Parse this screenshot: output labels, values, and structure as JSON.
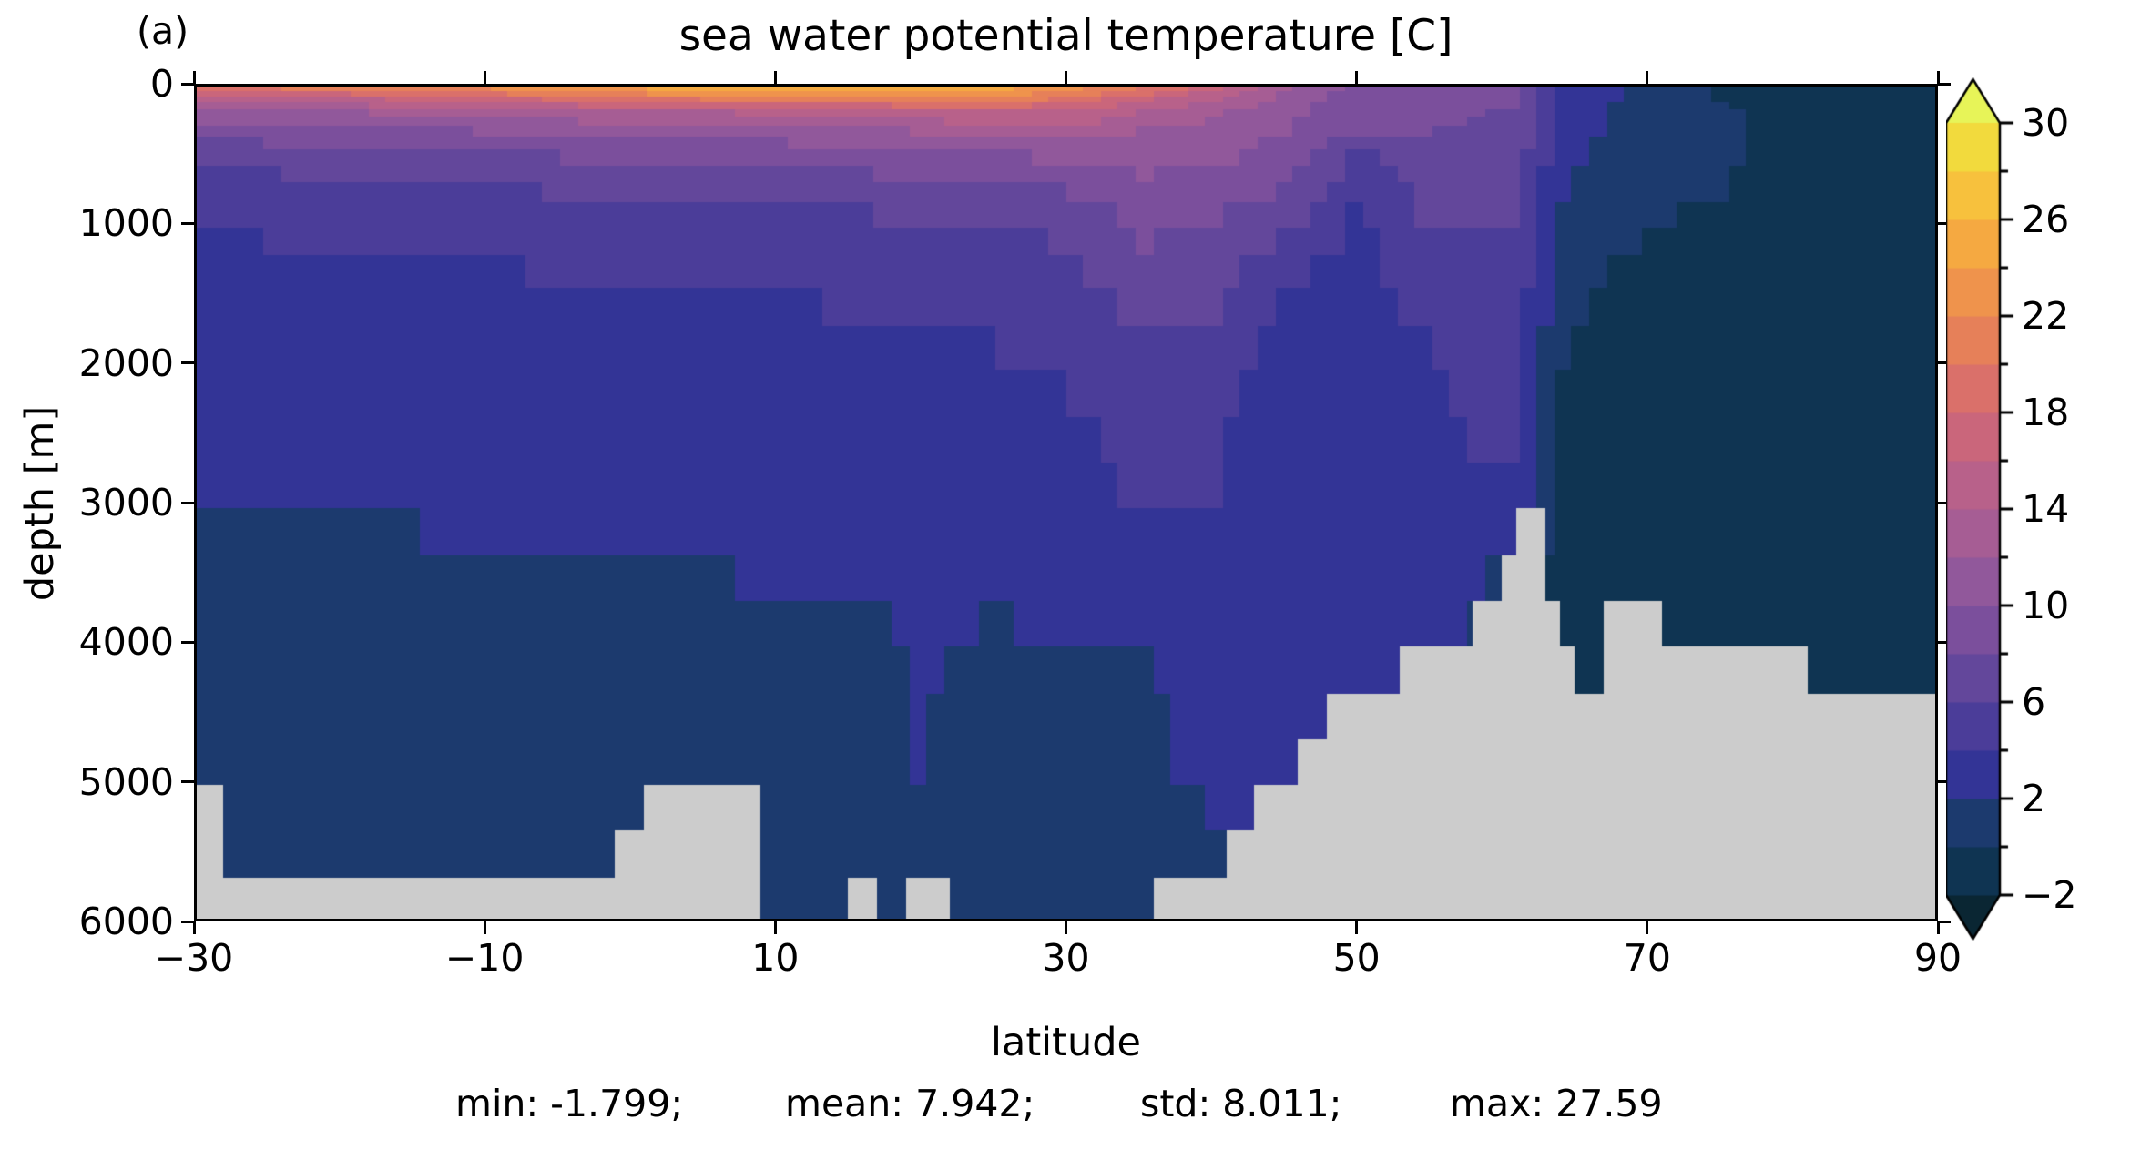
{
  "panel_label": "(a)",
  "title": "sea water potential temperature [C]",
  "x_axis": {
    "label": "latitude"
  },
  "y_axis": {
    "label": "depth [m]"
  },
  "stats_line": {
    "min": "min: -1.799;",
    "mean": "mean: 7.942;",
    "std": "std: 8.011;",
    "max": "max: 27.59"
  },
  "chart_data": {
    "type": "heatmap",
    "title": "sea water potential temperature [C]",
    "xlabel": "latitude",
    "ylabel": "depth [m]",
    "stats": {
      "min": -1.799,
      "mean": 7.942,
      "std": 8.011,
      "max": 27.59
    },
    "x": {
      "range": [
        -30,
        90
      ],
      "ticks": [
        -30,
        -10,
        10,
        30,
        50,
        70,
        90
      ],
      "tick_labels": [
        "−30",
        "−10",
        "10",
        "30",
        "50",
        "70",
        "90"
      ]
    },
    "y": {
      "range": [
        0,
        6000
      ],
      "inverted": true,
      "ticks": [
        0,
        1000,
        2000,
        3000,
        4000,
        5000,
        6000
      ],
      "tick_labels": [
        "0",
        "1000",
        "2000",
        "3000",
        "4000",
        "5000",
        "6000"
      ]
    },
    "colorbar": {
      "min": -2,
      "max": 30,
      "band_step": 2,
      "extend": "both",
      "levels": [
        -2,
        0,
        2,
        4,
        6,
        8,
        10,
        12,
        14,
        16,
        18,
        20,
        22,
        24,
        26,
        28,
        30
      ],
      "labeled_ticks": [
        30,
        26,
        22,
        18,
        14,
        10,
        6,
        2,
        -2
      ],
      "labeled_tick_labels": [
        "30",
        "26",
        "22",
        "18",
        "14",
        "10",
        "6",
        "2",
        "−2"
      ],
      "minor_ticks": [
        28,
        24,
        20,
        16,
        12,
        8,
        4,
        0
      ]
    },
    "colors": {
      "bands": [
        "#0f3452",
        "#1c3a6e",
        "#333496",
        "#4b3d99",
        "#63479b",
        "#7b4f9c",
        "#91589b",
        "#a65d94",
        "#b8618a",
        "#ca667b",
        "#da706a",
        "#e68059",
        "#ef934c",
        "#f5a941",
        "#f7c13d",
        "#f2da3d"
      ],
      "under": "#0a2633",
      "over": "#e7f458",
      "land": "#cccccc",
      "background": "#ffffff",
      "axis": "#000000"
    },
    "grid": {
      "lats": [
        -30,
        -25,
        -20,
        -15,
        -10,
        -5,
        0,
        5,
        10,
        15,
        20,
        25,
        30,
        35,
        40,
        45,
        50,
        55,
        58,
        61,
        64,
        67,
        70,
        75,
        80,
        85,
        90
      ],
      "depths": [
        0,
        100,
        200,
        350,
        500,
        750,
        1000,
        1500,
        2000,
        2500,
        3000,
        3500,
        4000,
        4500,
        5000,
        5500,
        6000
      ],
      "temperature": [
        [
          22.5,
          15.0,
          11.0,
          9.0,
          7.0,
          5.0,
          4.2,
          3.0,
          2.6,
          2.3,
          1.9,
          1.4,
          1.0,
          0.8,
          0.6,
          0.5,
          0.5
        ],
        [
          23.0,
          15.5,
          11.3,
          9.0,
          7.1,
          5.1,
          4.3,
          3.1,
          2.7,
          2.4,
          2.0,
          1.5,
          1.0,
          0.8,
          0.6,
          0.5,
          0.5
        ],
        [
          23.5,
          16.0,
          12.0,
          9.2,
          7.3,
          5.3,
          4.5,
          3.2,
          2.8,
          2.5,
          2.1,
          1.6,
          1.1,
          0.8,
          0.6,
          0.5,
          0.5
        ],
        [
          24.0,
          17.0,
          12.5,
          9.5,
          7.6,
          5.6,
          4.6,
          3.3,
          2.9,
          2.6,
          2.2,
          1.7,
          1.2,
          0.9,
          0.7,
          0.5,
          0.5
        ],
        [
          24.5,
          18.0,
          13.0,
          10.0,
          8.0,
          6.0,
          4.8,
          3.5,
          3.0,
          2.7,
          2.3,
          1.8,
          1.3,
          0.9,
          0.7,
          0.5,
          0.5
        ],
        [
          25.5,
          19.0,
          13.5,
          10.2,
          8.2,
          6.2,
          5.0,
          3.6,
          3.1,
          2.8,
          2.4,
          1.9,
          1.4,
          1.0,
          0.7,
          0.5,
          0.5
        ],
        [
          26.5,
          20.0,
          13.8,
          10.5,
          8.5,
          6.5,
          5.2,
          3.8,
          3.2,
          2.9,
          2.5,
          2.0,
          1.5,
          1.0,
          0.8,
          0.6,
          0.6
        ],
        [
          27.4,
          21.0,
          14.0,
          10.5,
          8.5,
          6.5,
          5.2,
          3.8,
          3.2,
          2.9,
          2.5,
          2.0,
          1.5,
          1.0,
          0.8,
          0.6,
          0.6
        ],
        [
          27.0,
          21.0,
          14.5,
          11.0,
          9.0,
          6.8,
          5.4,
          4.0,
          3.3,
          3.0,
          2.6,
          2.1,
          1.6,
          1.1,
          0.8,
          0.6,
          0.6
        ],
        [
          26.8,
          21.5,
          15.0,
          11.5,
          9.2,
          7.0,
          5.6,
          4.2,
          3.4,
          3.0,
          2.6,
          2.1,
          1.6,
          1.1,
          0.8,
          0.6,
          0.6
        ],
        [
          27.0,
          22.0,
          15.5,
          12.0,
          9.5,
          7.2,
          5.8,
          4.4,
          3.6,
          3.1,
          2.7,
          2.3,
          2.1,
          2.2,
          2.1,
          0.9,
          0.8
        ],
        [
          26.5,
          22.0,
          16.0,
          12.5,
          10.0,
          7.5,
          6.0,
          4.6,
          3.8,
          3.2,
          2.8,
          2.4,
          1.8,
          1.2,
          0.9,
          0.7,
          0.7
        ],
        [
          24.5,
          20.0,
          16.0,
          13.0,
          10.5,
          8.0,
          6.5,
          5.0,
          4.2,
          3.5,
          3.0,
          2.5,
          2.0,
          1.3,
          1.0,
          0.8,
          0.8
        ],
        [
          22.0,
          17.0,
          14.0,
          12.0,
          11.0,
          9.5,
          8.5,
          7.0,
          5.5,
          4.6,
          4.2,
          2.8,
          2.2,
          1.5,
          1.0,
          0.8,
          0.8
        ],
        [
          18.0,
          14.5,
          12.5,
          11.0,
          10.5,
          9.0,
          8.0,
          6.5,
          5.2,
          4.4,
          4.0,
          3.0,
          2.3,
          2.6,
          2.8,
          0.9,
          0.9
        ],
        [
          13.0,
          11.5,
          10.5,
          10.0,
          9.5,
          8.0,
          6.5,
          3.4,
          3.0,
          2.9,
          2.8,
          2.5,
          2.4,
          2.6,
          2.9,
          2.9,
          2.9
        ],
        [
          9.5,
          9.0,
          8.6,
          8.0,
          5.8,
          4.4,
          3.6,
          3.2,
          2.9,
          2.7,
          2.6,
          2.4,
          2.3,
          2.4,
          2.4,
          2.4,
          2.4
        ],
        [
          9.5,
          9.0,
          8.5,
          8.0,
          7.5,
          6.8,
          6.0,
          4.8,
          3.8,
          3.3,
          2.9,
          2.6,
          2.4,
          2.4,
          2.4,
          2.4,
          2.4
        ],
        [
          9.0,
          8.6,
          8.2,
          7.8,
          7.4,
          6.8,
          6.2,
          5.2,
          4.4,
          4.2,
          3.2,
          2.2,
          2.0,
          2.0,
          2.0,
          2.0,
          2.0
        ],
        [
          8.5,
          8.2,
          7.8,
          7.4,
          7.1,
          6.6,
          6.1,
          5.3,
          4.6,
          4.4,
          3.4,
          1.5,
          1.0,
          1.0,
          1.0,
          1.0,
          1.0
        ],
        [
          3.4,
          3.2,
          3.0,
          2.8,
          2.6,
          2.3,
          2.0,
          1.0,
          -0.2,
          -0.6,
          -0.8,
          -0.9,
          -1.0,
          -1.0,
          -1.0,
          -1.0,
          -1.0
        ],
        [
          2.6,
          2.4,
          2.2,
          2.0,
          1.6,
          1.0,
          0.4,
          -0.4,
          -0.8,
          -1.0,
          -1.0,
          -1.0,
          -1.0,
          -1.0,
          -1.0,
          -1.0,
          -1.0
        ],
        [
          1.4,
          1.2,
          1.0,
          0.9,
          0.8,
          0.6,
          0.2,
          -0.6,
          -0.9,
          -1.0,
          -1.1,
          -1.1,
          -1.1,
          -1.1,
          -1.1,
          -1.1,
          -1.1
        ],
        [
          -0.4,
          -0.2,
          0.3,
          0.5,
          0.4,
          0.1,
          -0.4,
          -0.9,
          -1.1,
          -1.2,
          -1.2,
          -1.3,
          -1.3,
          -1.3,
          -1.3,
          -1.3,
          -1.3
        ],
        [
          -1.1,
          -1.0,
          -0.9,
          -0.8,
          -0.9,
          -1.0,
          -1.1,
          -1.2,
          -1.3,
          -1.3,
          -1.4,
          -1.4,
          -1.4,
          -1.4,
          -1.4,
          -1.4,
          -1.4
        ],
        [
          -1.5,
          -1.4,
          -1.3,
          -1.3,
          -1.3,
          -1.3,
          -1.3,
          -1.4,
          -1.4,
          -1.5,
          -1.5,
          -1.5,
          -1.5,
          -1.5,
          -1.5,
          -1.5,
          -1.5
        ],
        [
          -1.7,
          -1.6,
          -1.6,
          -1.5,
          -1.5,
          -1.5,
          -1.5,
          -1.5,
          -1.6,
          -1.6,
          -1.7,
          -1.7,
          -1.7,
          -1.7,
          -1.7,
          -1.7,
          -1.7
        ]
      ]
    },
    "bathymetry": {
      "lats": [
        -30,
        -27.6,
        -27.5,
        -24.5,
        -24,
        -5,
        -2,
        0,
        1,
        2.5,
        4,
        7,
        8.5,
        9,
        9.5,
        11,
        13,
        14,
        16,
        18,
        21,
        23,
        26,
        31,
        34,
        36,
        38,
        40,
        41,
        42,
        43,
        44,
        45,
        46,
        47,
        48,
        49,
        50,
        51,
        52,
        53.5,
        54,
        55.5,
        56,
        57.5,
        58,
        59.5,
        60,
        60.8,
        61,
        62.5,
        62.7,
        63.5,
        64.5,
        65.3,
        66.5,
        67,
        67.5,
        68,
        70.7,
        71,
        72,
        79.8,
        80,
        81.7,
        82,
        90
      ],
      "floor_depth": [
        5150,
        5150,
        5600,
        5620,
        5750,
        5750,
        5550,
        5400,
        5150,
        4950,
        4900,
        4900,
        5000,
        5350,
        5900,
        5950,
        5950,
        5870,
        5800,
        5870,
        5800,
        5880,
        5930,
        5950,
        5920,
        5870,
        5750,
        5650,
        5400,
        5260,
        5150,
        5050,
        4950,
        4800,
        4650,
        4500,
        4400,
        4300,
        4250,
        4220,
        4150,
        4100,
        4050,
        4000,
        3900,
        3820,
        3750,
        3650,
        3400,
        2950,
        2950,
        3250,
        3600,
        3900,
        4200,
        4230,
        4100,
        3700,
        3560,
        3560,
        3950,
        4000,
        4000,
        4150,
        4180,
        4490,
        4490
      ]
    }
  }
}
